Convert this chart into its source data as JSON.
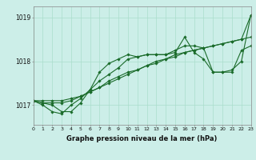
{
  "background_color": "#cceee8",
  "grid_color": "#aaddcc",
  "line_color": "#1a6b2a",
  "title": "Graphe pression niveau de la mer (hPa)",
  "xlim": [
    0,
    23
  ],
  "ylim": [
    1016.55,
    1019.25
  ],
  "yticks": [
    1017,
    1018,
    1019
  ],
  "xticks": [
    0,
    1,
    2,
    3,
    4,
    5,
    6,
    7,
    8,
    9,
    10,
    11,
    12,
    13,
    14,
    15,
    16,
    17,
    18,
    19,
    20,
    21,
    22,
    23
  ],
  "hours": [
    0,
    1,
    2,
    3,
    4,
    5,
    6,
    7,
    8,
    9,
    10,
    11,
    12,
    13,
    14,
    15,
    16,
    17,
    18,
    19,
    20,
    21,
    22,
    23
  ],
  "line1_y": [
    1017.1,
    1017.05,
    1017.0,
    1016.85,
    1016.85,
    1017.05,
    1017.35,
    1017.75,
    1017.95,
    1018.05,
    1018.15,
    1018.1,
    1018.15,
    1018.15,
    1018.15,
    1018.2,
    1018.55,
    1018.2,
    1018.05,
    1017.75,
    1017.75,
    1017.8,
    1018.0,
    1019.05
  ],
  "line2_y": [
    1017.1,
    1017.0,
    1016.85,
    1016.8,
    1017.0,
    1017.15,
    1017.35,
    1017.55,
    1017.7,
    1017.85,
    1018.05,
    1018.1,
    1018.15,
    1018.15,
    1018.15,
    1018.25,
    1018.35,
    1018.35,
    1018.3,
    1017.75,
    1017.75,
    1017.75,
    1018.25,
    1018.35
  ],
  "line3_y": [
    1017.1,
    1017.05,
    1017.05,
    1017.05,
    1017.1,
    1017.2,
    1017.3,
    1017.4,
    1017.55,
    1017.65,
    1017.75,
    1017.8,
    1017.9,
    1018.0,
    1018.05,
    1018.15,
    1018.2,
    1018.25,
    1018.3,
    1018.35,
    1018.4,
    1018.45,
    1018.5,
    1019.05
  ],
  "line4_y": [
    1017.1,
    1017.1,
    1017.1,
    1017.1,
    1017.15,
    1017.2,
    1017.3,
    1017.4,
    1017.5,
    1017.6,
    1017.7,
    1017.8,
    1017.9,
    1017.95,
    1018.05,
    1018.1,
    1018.2,
    1018.25,
    1018.3,
    1018.35,
    1018.4,
    1018.45,
    1018.5,
    1018.55
  ]
}
